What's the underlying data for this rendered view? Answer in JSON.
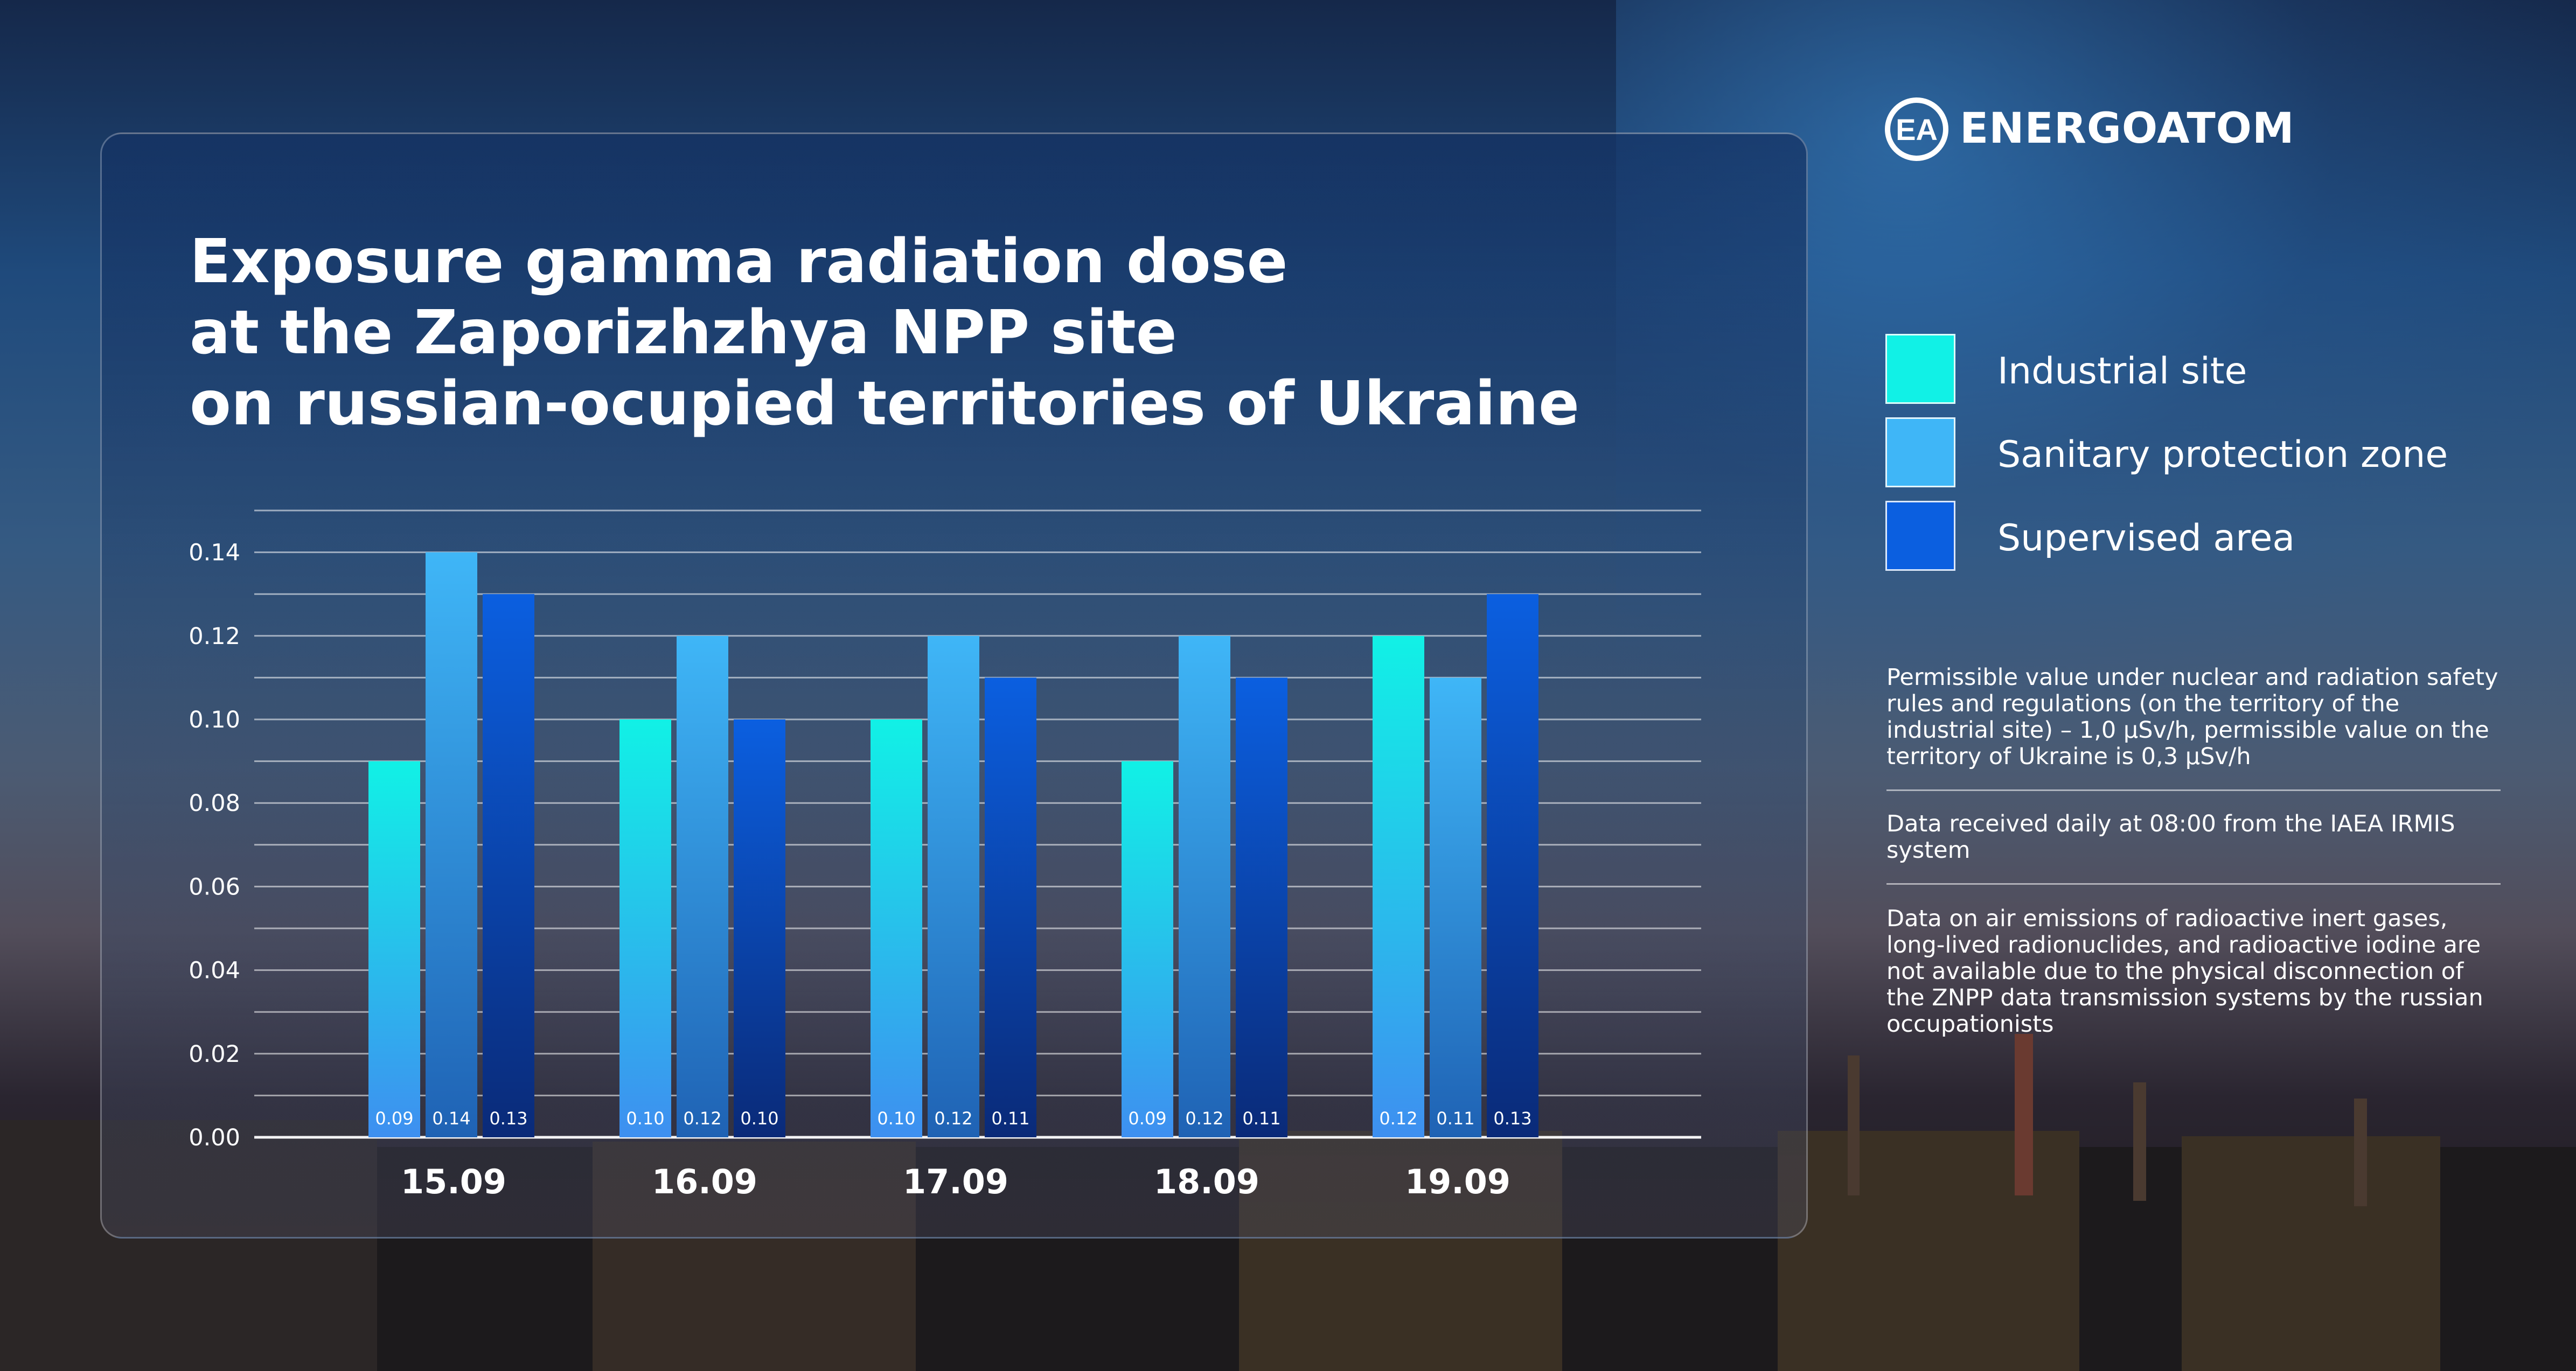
{
  "colors": {
    "industrial": "#11f1e6",
    "sanitary": "#3fb6f7",
    "supervised": "#0b5fe0"
  },
  "brand": {
    "name": "ENERGOATOM",
    "mark": "EA",
    "logo_icon": "energoatom-logo-icon"
  },
  "title_lines": [
    "Exposure gamma radiation dose",
    "at the Zaporizhzhya NPP site",
    "on russian-ocupied territories of Ukraine"
  ],
  "legend": [
    {
      "label": "Industrial site",
      "color": "#11f1e6"
    },
    {
      "label": "Sanitary protection zone",
      "color": "#3fb6f7"
    },
    {
      "label": "Supervised area",
      "color": "#0b5fe0"
    }
  ],
  "notes": [
    "Permissible value under nuclear and radiation safety rules and regulations (on the territory of the industrial site) – 1,0 µSv/h, permissible value on the territory of Ukraine is 0,3 µSv/h",
    "Data received daily at 08:00 from the IAEA IRMIS system",
    "Data on air emissions of radioactive inert gases, long-lived radionuclides, and radioactive iodine are not available due to the physical disconnection of the ZNPP data transmission systems by the russian occupationists"
  ],
  "chart_data": {
    "type": "bar",
    "title": "Exposure gamma radiation dose at the Zaporizhzhya NPP site on russian-ocupied territories of Ukraine",
    "categories": [
      "15.09",
      "16.09",
      "17.09",
      "18.09",
      "19.09"
    ],
    "series": [
      {
        "name": "Industrial site",
        "values": [
          0.09,
          0.1,
          0.1,
          0.09,
          0.12
        ],
        "labels": [
          "0.09",
          "0.10",
          "0.10",
          "0.09",
          "0.12"
        ]
      },
      {
        "name": "Sanitary protection zone",
        "values": [
          0.14,
          0.12,
          0.12,
          0.12,
          0.11
        ],
        "labels": [
          "0.14",
          "0.12",
          "0.12",
          "0.12",
          "0.11"
        ]
      },
      {
        "name": "Supervised area",
        "values": [
          0.13,
          0.1,
          0.11,
          0.11,
          0.13
        ],
        "labels": [
          "0.13",
          "0.10",
          "0.11",
          "0.11",
          "0.13"
        ]
      }
    ],
    "y_ticks": [
      "0.00",
      "0.02",
      "0.04",
      "0.06",
      "0.08",
      "0.10",
      "0.12",
      "0.14"
    ],
    "ylim": [
      0,
      0.15
    ],
    "xlabel": "",
    "ylabel": "",
    "grid": true,
    "legend_position": "right"
  }
}
